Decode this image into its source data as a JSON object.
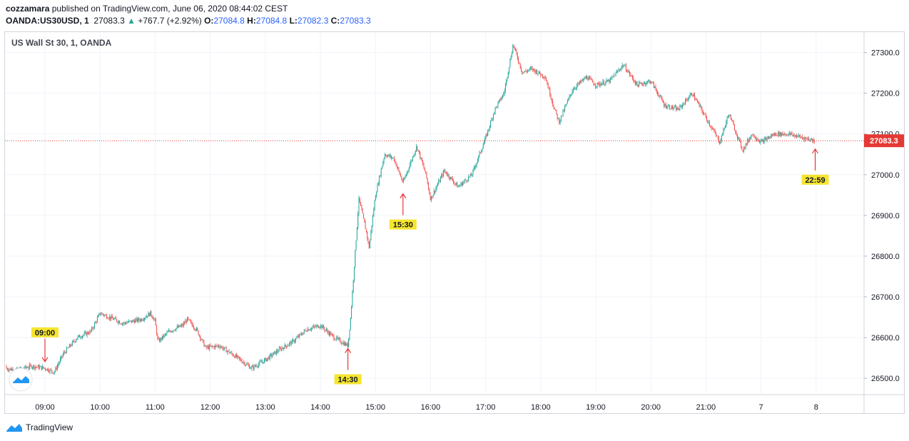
{
  "header": {
    "publisher": "cozzamara",
    "published_text": "published on TradingView.com, June 06, 2020 08:44:02 CEST",
    "symbol": "OANDA:US30USD, 1",
    "last": "27083.3",
    "change": "+767.7 (+2.92%)",
    "o_label": "O:",
    "o_value": "27084.8",
    "h_label": "H:",
    "h_value": "27084.8",
    "l_label": "L:",
    "l_value": "27082.3",
    "c_label": "C:",
    "c_value": "27083.3"
  },
  "chart_title": "US Wall St 30, 1, OANDA",
  "footer": {
    "brand": "TradingView"
  },
  "colors": {
    "up": "#26a69a",
    "down": "#ef5350",
    "annotation": "#f5e52f",
    "arrow": "#e53935",
    "price_line": "#e53935"
  },
  "chart_data": {
    "type": "candlestick",
    "x_ticks": [
      "09:00",
      "10:00",
      "11:00",
      "12:00",
      "13:00",
      "14:00",
      "15:00",
      "16:00",
      "17:00",
      "18:00",
      "19:00",
      "20:00",
      "21:00",
      "7",
      "8"
    ],
    "y_ticks": [
      "26500.0",
      "26600.0",
      "26700.0",
      "26800.0",
      "26900.0",
      "27000.0",
      "27100.0",
      "27200.0",
      "27300.0"
    ],
    "ylim": [
      26460,
      27350
    ],
    "last_price": "27083.3",
    "series": [
      {
        "time": "08:00",
        "price": 26530
      },
      {
        "time": "08:30",
        "price": 26520
      },
      {
        "time": "08:45",
        "price": 26530
      },
      {
        "time": "09:00",
        "price": 26525
      },
      {
        "time": "09:10",
        "price": 26515
      },
      {
        "time": "09:20",
        "price": 26560
      },
      {
        "time": "09:35",
        "price": 26600
      },
      {
        "time": "09:50",
        "price": 26615
      },
      {
        "time": "10:00",
        "price": 26660
      },
      {
        "time": "10:10",
        "price": 26650
      },
      {
        "time": "10:25",
        "price": 26635
      },
      {
        "time": "10:45",
        "price": 26645
      },
      {
        "time": "10:55",
        "price": 26660
      },
      {
        "time": "11:00",
        "price": 26640
      },
      {
        "time": "11:03",
        "price": 26590
      },
      {
        "time": "11:15",
        "price": 26615
      },
      {
        "time": "11:30",
        "price": 26630
      },
      {
        "time": "11:35",
        "price": 26645
      },
      {
        "time": "11:45",
        "price": 26620
      },
      {
        "time": "11:55",
        "price": 26575
      },
      {
        "time": "12:10",
        "price": 26580
      },
      {
        "time": "12:30",
        "price": 26550
      },
      {
        "time": "12:45",
        "price": 26525
      },
      {
        "time": "13:00",
        "price": 26545
      },
      {
        "time": "13:15",
        "price": 26570
      },
      {
        "time": "13:30",
        "price": 26590
      },
      {
        "time": "13:45",
        "price": 26620
      },
      {
        "time": "14:00",
        "price": 26630
      },
      {
        "time": "14:15",
        "price": 26600
      },
      {
        "time": "14:30",
        "price": 26580
      },
      {
        "time": "14:33",
        "price": 26650
      },
      {
        "time": "14:37",
        "price": 26780
      },
      {
        "time": "14:42",
        "price": 26940
      },
      {
        "time": "14:50",
        "price": 26860
      },
      {
        "time": "14:53",
        "price": 26820
      },
      {
        "time": "15:00",
        "price": 26950
      },
      {
        "time": "15:10",
        "price": 27050
      },
      {
        "time": "15:20",
        "price": 27040
      },
      {
        "time": "15:30",
        "price": 26980
      },
      {
        "time": "15:45",
        "price": 27070
      },
      {
        "time": "15:55",
        "price": 27000
      },
      {
        "time": "16:00",
        "price": 26940
      },
      {
        "time": "16:15",
        "price": 27010
      },
      {
        "time": "16:30",
        "price": 26970
      },
      {
        "time": "16:45",
        "price": 27000
      },
      {
        "time": "17:00",
        "price": 27090
      },
      {
        "time": "17:10",
        "price": 27160
      },
      {
        "time": "17:20",
        "price": 27200
      },
      {
        "time": "17:30",
        "price": 27320
      },
      {
        "time": "17:40",
        "price": 27250
      },
      {
        "time": "17:50",
        "price": 27260
      },
      {
        "time": "18:05",
        "price": 27240
      },
      {
        "time": "18:15",
        "price": 27160
      },
      {
        "time": "18:20",
        "price": 27130
      },
      {
        "time": "18:35",
        "price": 27210
      },
      {
        "time": "18:50",
        "price": 27240
      },
      {
        "time": "19:00",
        "price": 27220
      },
      {
        "time": "19:15",
        "price": 27230
      },
      {
        "time": "19:30",
        "price": 27270
      },
      {
        "time": "19:45",
        "price": 27220
      },
      {
        "time": "20:00",
        "price": 27230
      },
      {
        "time": "20:15",
        "price": 27170
      },
      {
        "time": "20:30",
        "price": 27160
      },
      {
        "time": "20:45",
        "price": 27200
      },
      {
        "time": "21:00",
        "price": 27140
      },
      {
        "time": "21:15",
        "price": 27080
      },
      {
        "time": "21:25",
        "price": 27150
      },
      {
        "time": "21:40",
        "price": 27060
      },
      {
        "time": "21:50",
        "price": 27100
      },
      {
        "time": "22:00",
        "price": 27080
      },
      {
        "time": "22:15",
        "price": 27100
      },
      {
        "time": "22:30",
        "price": 27100
      },
      {
        "time": "22:59",
        "price": 27083
      }
    ],
    "annotations": [
      {
        "label": "09:00",
        "time": "09:00",
        "price": 26520,
        "direction": "down"
      },
      {
        "label": "14:30",
        "time": "14:30",
        "price": 26580,
        "direction": "up"
      },
      {
        "label": "15:30",
        "time": "15:30",
        "price": 26960,
        "direction": "up"
      },
      {
        "label": "22:59",
        "time": "22:59",
        "price": 27070,
        "direction": "up"
      }
    ]
  }
}
